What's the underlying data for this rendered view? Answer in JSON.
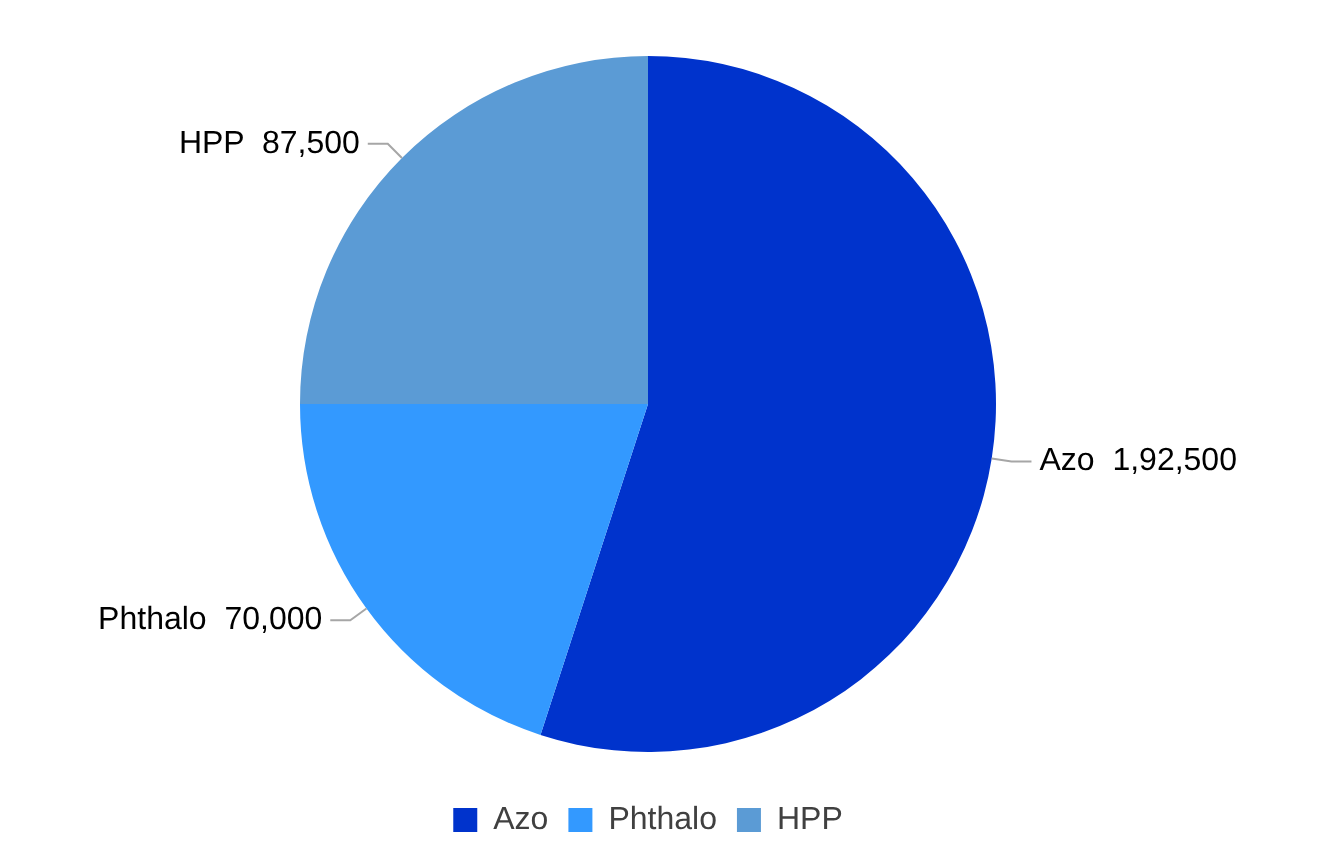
{
  "chart_data": {
    "type": "pie",
    "categories": [
      "Azo",
      "Phthalo",
      "HPP"
    ],
    "values": [
      192500,
      70000,
      87500
    ],
    "value_labels": [
      "1,92,500",
      "70,000",
      "87,500"
    ],
    "colors": [
      "#0033cc",
      "#3399ff",
      "#5b9bd5"
    ],
    "legend": "bottom"
  }
}
